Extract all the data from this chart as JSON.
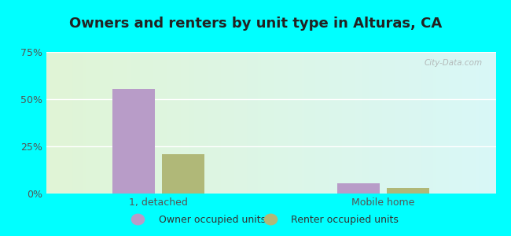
{
  "title": "Owners and renters by unit type in Alturas, CA",
  "categories": [
    "1, detached",
    "Mobile home"
  ],
  "owner_values": [
    55.5,
    5.5
  ],
  "renter_values": [
    21.0,
    3.0
  ],
  "owner_color": "#b89cc8",
  "renter_color": "#b0b878",
  "ylim": [
    0,
    75
  ],
  "yticks": [
    0,
    25,
    50,
    75
  ],
  "ytick_labels": [
    "0%",
    "25%",
    "50%",
    "75%"
  ],
  "bg_color_topleft": [
    0.88,
    0.96,
    0.84
  ],
  "bg_color_topright": [
    0.85,
    0.97,
    0.97
  ],
  "bg_color_bottomleft": [
    0.88,
    0.96,
    0.84
  ],
  "bg_color_bottomright": [
    0.85,
    0.97,
    0.97
  ],
  "title_fontsize": 13,
  "label_fontsize": 9,
  "tick_fontsize": 9,
  "legend_label_owner": "Owner occupied units",
  "legend_label_renter": "Renter occupied units",
  "watermark": "City-Data.com",
  "outer_bg": "#00ffff"
}
